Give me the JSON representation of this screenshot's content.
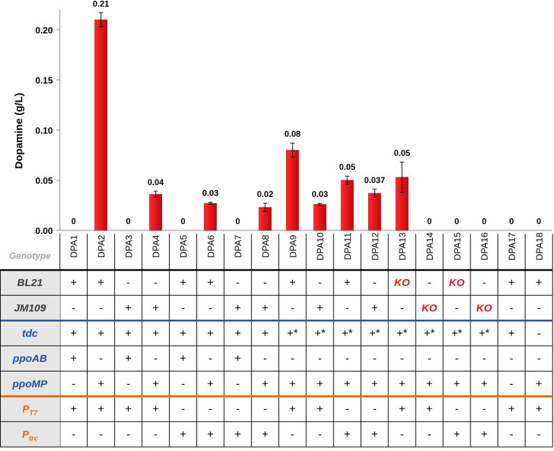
{
  "chart_data": {
    "type": "bar",
    "ylabel": "Dopamine (g/L)",
    "ylim": [
      0,
      0.22
    ],
    "y_ticks": [
      "0.00",
      "0.05",
      "0.10",
      "0.15",
      "0.20"
    ],
    "grid": false,
    "categories": [
      "DPA1",
      "DPA2",
      "DPA3",
      "DPA4",
      "DPA5",
      "DPA6",
      "DPA7",
      "DPA8",
      "DPA9",
      "DPA10",
      "DPA11",
      "DPA12",
      "DPA13",
      "DPA14",
      "DPA15",
      "DPA16",
      "DPA17",
      "DPA18"
    ],
    "values": [
      0,
      0.21,
      0,
      0.036,
      0,
      0.027,
      0,
      0.023,
      0.08,
      0.026,
      0.05,
      0.037,
      0.053,
      0,
      0,
      0,
      0,
      0
    ],
    "errors": [
      0,
      0.007,
      0,
      0.003,
      0,
      0.001,
      0,
      0.004,
      0.007,
      0.001,
      0.004,
      0.004,
      0.015,
      0,
      0,
      0,
      0,
      0
    ],
    "data_labels": [
      "0",
      "0.21",
      "0",
      "0.04",
      "0",
      "0.03",
      "0",
      "0.02",
      "0.08",
      "0.03",
      "0.05",
      "0.037",
      "0.05",
      "0",
      "0",
      "0",
      "0",
      "0"
    ],
    "bar_color": "#e8141a"
  },
  "table": {
    "header_label": "Genotype",
    "rows": [
      {
        "label": "BL21",
        "label_color": "#3a3a3a",
        "cells": [
          "+",
          "+",
          "-",
          "-",
          "+",
          "+",
          "-",
          "-",
          "+",
          "-",
          "+",
          "-",
          "KO",
          "-",
          "KO",
          "-",
          "+",
          "+"
        ]
      },
      {
        "label": "JM109",
        "label_color": "#3a3a3a",
        "cells": [
          "-",
          "-",
          "+",
          "+",
          "-",
          "-",
          "+",
          "+",
          "-",
          "+",
          "-",
          "+",
          "-",
          "KO",
          "-",
          "KO",
          "-",
          "-"
        ]
      },
      {
        "label": "tdc",
        "label_color": "#1f4e9a",
        "cells": [
          "+",
          "+",
          "+",
          "+",
          "+",
          "+",
          "+",
          "+",
          "+*",
          "+*",
          "+*",
          "+*",
          "+*",
          "+*",
          "+*",
          "+*",
          "+",
          "-"
        ]
      },
      {
        "label": "ppoAB",
        "label_color": "#1f4e9a",
        "cells": [
          "+",
          "-",
          "+",
          "-",
          "+",
          "-",
          "+",
          "-",
          "-",
          "-",
          "-",
          "-",
          "-",
          "-",
          "-",
          "-",
          "-",
          "-"
        ]
      },
      {
        "label": "ppoMP",
        "label_color": "#1f4e9a",
        "cells": [
          "-",
          "+",
          "-",
          "+",
          "-",
          "+",
          "-",
          "+",
          "+",
          "+",
          "+",
          "+",
          "+",
          "+",
          "+",
          "+",
          "-",
          "+"
        ]
      },
      {
        "label": "P",
        "sub": "T7",
        "label_color": "#e36c0a",
        "cells": [
          "+",
          "+",
          "+",
          "+",
          "-",
          "-",
          "-",
          "-",
          "+",
          "+",
          "-",
          "-",
          "+",
          "+",
          "-",
          "-",
          "+",
          "+"
        ]
      },
      {
        "label": "P",
        "sub": "trc",
        "label_color": "#e36c0a",
        "cells": [
          "-",
          "-",
          "-",
          "-",
          "+",
          "+",
          "+",
          "+",
          "-",
          "-",
          "+",
          "+",
          "-",
          "-",
          "+",
          "+",
          "-",
          "-"
        ]
      }
    ],
    "colors": {
      "ko": "#e8141a",
      "blue_divider": "#1f4e9a",
      "orange_divider": "#e36c0a",
      "label_bg": "#e6e6e6"
    }
  }
}
